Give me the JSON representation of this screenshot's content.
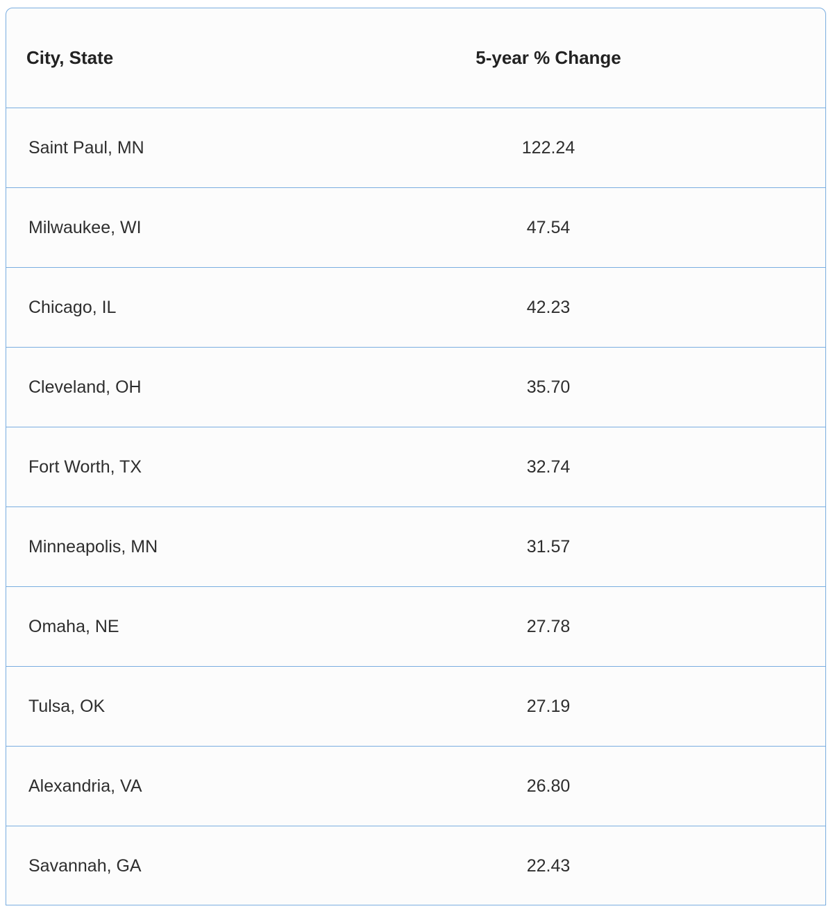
{
  "table": {
    "header": [
      "City, State",
      "5-year % Change"
    ],
    "rows": [
      [
        "Saint Paul, MN",
        "122.24"
      ],
      [
        "Milwaukee, WI",
        "47.54"
      ],
      [
        "Chicago, IL",
        "42.23"
      ],
      [
        "Cleveland, OH",
        "35.70"
      ],
      [
        "Fort Worth, TX",
        "32.74"
      ],
      [
        "Minneapolis, MN",
        "31.57"
      ],
      [
        "Omaha, NE",
        "27.78"
      ],
      [
        "Tulsa, OK",
        "27.19"
      ],
      [
        "Alexandria, VA",
        "26.80"
      ],
      [
        "Savannah, GA",
        "22.43"
      ]
    ]
  }
}
